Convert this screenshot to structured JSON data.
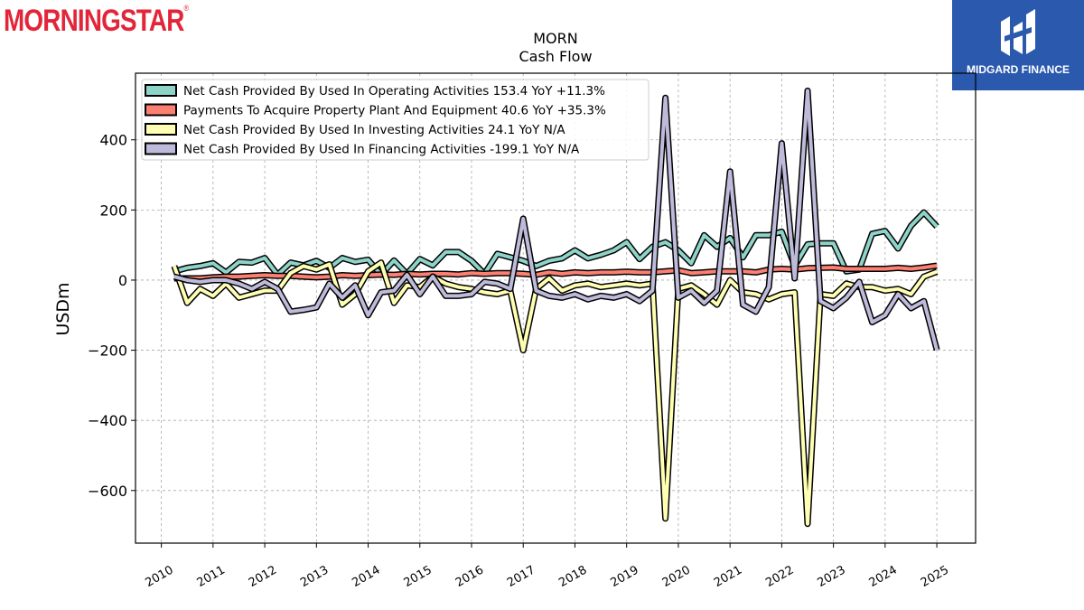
{
  "logos": {
    "left": "MORNINGSTAR",
    "left_mark": "®",
    "right": "MIDGARD FINANCE"
  },
  "colors": {
    "operating": "#8dd3c7",
    "capex": "#fb8072",
    "investing": "#ffffb3",
    "financing": "#bebada"
  },
  "chart_data": {
    "type": "line",
    "title": "MORN",
    "subtitle": "Cash Flow",
    "ylabel": "USDm",
    "xlabel": "",
    "ylim": [
      -750,
      590
    ],
    "xlim": [
      2009.5,
      2025.75
    ],
    "yticks": [
      400,
      200,
      0,
      -200,
      -400,
      -600
    ],
    "ytick_labels": [
      "400",
      "200",
      "0",
      "−200",
      "−400",
      "−600"
    ],
    "xticks": [
      2010,
      2011,
      2012,
      2013,
      2014,
      2015,
      2016,
      2017,
      2018,
      2019,
      2020,
      2021,
      2022,
      2023,
      2024,
      2025
    ],
    "grid": true,
    "legend_position": "top-left",
    "series": [
      {
        "name": "Net Cash Provided By Used In Operating Activities",
        "legend": "Net Cash Provided By Used In Operating Activities  153.4 YoY +11.3%",
        "color": "#8dd3c7",
        "points": [
          [
            2010.25,
            25
          ],
          [
            2010.5,
            35
          ],
          [
            2010.75,
            40
          ],
          [
            2011.0,
            48
          ],
          [
            2011.25,
            22
          ],
          [
            2011.5,
            52
          ],
          [
            2011.75,
            50
          ],
          [
            2012.0,
            63
          ],
          [
            2012.25,
            15
          ],
          [
            2012.5,
            50
          ],
          [
            2012.75,
            42
          ],
          [
            2013.0,
            55
          ],
          [
            2013.25,
            35
          ],
          [
            2013.5,
            63
          ],
          [
            2013.75,
            52
          ],
          [
            2014.0,
            58
          ],
          [
            2014.25,
            15
          ],
          [
            2014.5,
            56
          ],
          [
            2014.75,
            18
          ],
          [
            2015.0,
            60
          ],
          [
            2015.25,
            42
          ],
          [
            2015.5,
            80
          ],
          [
            2015.75,
            80
          ],
          [
            2016.0,
            55
          ],
          [
            2016.25,
            18
          ],
          [
            2016.5,
            75
          ],
          [
            2016.75,
            65
          ],
          [
            2017.0,
            55
          ],
          [
            2017.25,
            40
          ],
          [
            2017.5,
            55
          ],
          [
            2017.75,
            62
          ],
          [
            2018.0,
            85
          ],
          [
            2018.25,
            62
          ],
          [
            2018.5,
            72
          ],
          [
            2018.75,
            85
          ],
          [
            2019.0,
            108
          ],
          [
            2019.25,
            60
          ],
          [
            2019.5,
            95
          ],
          [
            2019.75,
            108
          ],
          [
            2020.0,
            85
          ],
          [
            2020.25,
            48
          ],
          [
            2020.5,
            128
          ],
          [
            2020.75,
            95
          ],
          [
            2021.0,
            120
          ],
          [
            2021.25,
            65
          ],
          [
            2021.5,
            128
          ],
          [
            2021.75,
            128
          ],
          [
            2022.0,
            138
          ],
          [
            2022.25,
            40
          ],
          [
            2022.5,
            102
          ],
          [
            2022.75,
            105
          ],
          [
            2023.0,
            105
          ],
          [
            2023.25,
            25
          ],
          [
            2023.5,
            30
          ],
          [
            2023.75,
            132
          ],
          [
            2024.0,
            140
          ],
          [
            2024.25,
            90
          ],
          [
            2024.5,
            155
          ],
          [
            2024.75,
            193
          ],
          [
            2025.0,
            153
          ]
        ]
      },
      {
        "name": "Payments To Acquire Property Plant And Equipment",
        "legend": "Payments To Acquire Property Plant And Equipment  40.6 YoY +35.3%",
        "color": "#fb8072",
        "points": [
          [
            2010.25,
            5
          ],
          [
            2010.5,
            5
          ],
          [
            2010.75,
            5
          ],
          [
            2011.0,
            8
          ],
          [
            2011.25,
            10
          ],
          [
            2011.5,
            10
          ],
          [
            2011.75,
            12
          ],
          [
            2012.0,
            14
          ],
          [
            2012.25,
            12
          ],
          [
            2012.5,
            12
          ],
          [
            2012.75,
            10
          ],
          [
            2013.0,
            8
          ],
          [
            2013.25,
            10
          ],
          [
            2013.5,
            14
          ],
          [
            2013.75,
            12
          ],
          [
            2014.0,
            14
          ],
          [
            2014.25,
            16
          ],
          [
            2014.5,
            15
          ],
          [
            2014.75,
            18
          ],
          [
            2015.0,
            16
          ],
          [
            2015.25,
            18
          ],
          [
            2015.5,
            18
          ],
          [
            2015.75,
            16
          ],
          [
            2016.0,
            20
          ],
          [
            2016.25,
            18
          ],
          [
            2016.5,
            20
          ],
          [
            2016.75,
            20
          ],
          [
            2017.0,
            18
          ],
          [
            2017.25,
            15
          ],
          [
            2017.5,
            22
          ],
          [
            2017.75,
            18
          ],
          [
            2018.0,
            22
          ],
          [
            2018.25,
            20
          ],
          [
            2018.5,
            22
          ],
          [
            2018.75,
            22
          ],
          [
            2019.0,
            24
          ],
          [
            2019.25,
            22
          ],
          [
            2019.5,
            22
          ],
          [
            2019.75,
            25
          ],
          [
            2020.0,
            28
          ],
          [
            2020.25,
            20
          ],
          [
            2020.5,
            22
          ],
          [
            2020.75,
            25
          ],
          [
            2021.0,
            25
          ],
          [
            2021.25,
            25
          ],
          [
            2021.5,
            22
          ],
          [
            2021.75,
            30
          ],
          [
            2022.0,
            32
          ],
          [
            2022.25,
            30
          ],
          [
            2022.5,
            34
          ],
          [
            2022.75,
            35
          ],
          [
            2023.0,
            36
          ],
          [
            2023.25,
            32
          ],
          [
            2023.5,
            32
          ],
          [
            2023.75,
            32
          ],
          [
            2024.0,
            32
          ],
          [
            2024.25,
            35
          ],
          [
            2024.5,
            32
          ],
          [
            2024.75,
            36
          ],
          [
            2025.0,
            41
          ]
        ]
      },
      {
        "name": "Net Cash Provided By Used In Investing Activities",
        "legend": "Net Cash Provided By Used In Investing Activities  24.1 YoY N/A",
        "color": "#ffffb3",
        "points": [
          [
            2010.25,
            40
          ],
          [
            2010.5,
            -65
          ],
          [
            2010.75,
            -25
          ],
          [
            2011.0,
            -45
          ],
          [
            2011.25,
            -10
          ],
          [
            2011.5,
            -50
          ],
          [
            2011.75,
            -40
          ],
          [
            2012.0,
            -30
          ],
          [
            2012.25,
            -30
          ],
          [
            2012.5,
            20
          ],
          [
            2012.75,
            40
          ],
          [
            2013.0,
            30
          ],
          [
            2013.25,
            45
          ],
          [
            2013.5,
            -70
          ],
          [
            2013.75,
            -40
          ],
          [
            2014.0,
            25
          ],
          [
            2014.25,
            50
          ],
          [
            2014.5,
            -65
          ],
          [
            2014.75,
            -15
          ],
          [
            2015.0,
            -20
          ],
          [
            2015.25,
            10
          ],
          [
            2015.5,
            -10
          ],
          [
            2015.75,
            -20
          ],
          [
            2016.0,
            -25
          ],
          [
            2016.25,
            -35
          ],
          [
            2016.5,
            -40
          ],
          [
            2016.75,
            -30
          ],
          [
            2017.0,
            -200
          ],
          [
            2017.25,
            -25
          ],
          [
            2017.5,
            5
          ],
          [
            2017.75,
            -30
          ],
          [
            2018.0,
            -15
          ],
          [
            2018.25,
            -10
          ],
          [
            2018.5,
            -20
          ],
          [
            2018.75,
            -15
          ],
          [
            2019.0,
            -10
          ],
          [
            2019.25,
            -15
          ],
          [
            2019.5,
            -10
          ],
          [
            2019.75,
            -680
          ],
          [
            2020.0,
            -25
          ],
          [
            2020.25,
            -15
          ],
          [
            2020.5,
            -40
          ],
          [
            2020.75,
            -70
          ],
          [
            2021.0,
            0
          ],
          [
            2021.25,
            -35
          ],
          [
            2021.5,
            -40
          ],
          [
            2021.75,
            -55
          ],
          [
            2022.0,
            -40
          ],
          [
            2022.25,
            -35
          ],
          [
            2022.5,
            -695
          ],
          [
            2022.75,
            -40
          ],
          [
            2023.0,
            -45
          ],
          [
            2023.25,
            -10
          ],
          [
            2023.5,
            -20
          ],
          [
            2023.75,
            -20
          ],
          [
            2024.0,
            -30
          ],
          [
            2024.25,
            -25
          ],
          [
            2024.5,
            -40
          ],
          [
            2024.75,
            10
          ],
          [
            2025.0,
            24
          ]
        ]
      },
      {
        "name": "Net Cash Provided By Used In Financing Activities",
        "legend": "Net Cash Provided By Used In Financing Activities  -199.1 YoY N/A",
        "color": "#bebada",
        "points": [
          [
            2010.25,
            10
          ],
          [
            2010.5,
            0
          ],
          [
            2010.75,
            -5
          ],
          [
            2011.0,
            0
          ],
          [
            2011.25,
            0
          ],
          [
            2011.5,
            -10
          ],
          [
            2011.75,
            -25
          ],
          [
            2012.0,
            -5
          ],
          [
            2012.25,
            -25
          ],
          [
            2012.5,
            -90
          ],
          [
            2012.75,
            -85
          ],
          [
            2013.0,
            -78
          ],
          [
            2013.25,
            -10
          ],
          [
            2013.5,
            -50
          ],
          [
            2013.75,
            -15
          ],
          [
            2014.0,
            -100
          ],
          [
            2014.25,
            -35
          ],
          [
            2014.5,
            -30
          ],
          [
            2014.75,
            15
          ],
          [
            2015.0,
            -40
          ],
          [
            2015.25,
            10
          ],
          [
            2015.5,
            -45
          ],
          [
            2015.75,
            -45
          ],
          [
            2016.0,
            -40
          ],
          [
            2016.25,
            -5
          ],
          [
            2016.5,
            -10
          ],
          [
            2016.75,
            -25
          ],
          [
            2017.0,
            175
          ],
          [
            2017.25,
            -30
          ],
          [
            2017.5,
            -45
          ],
          [
            2017.75,
            -50
          ],
          [
            2018.0,
            -40
          ],
          [
            2018.25,
            -55
          ],
          [
            2018.5,
            -45
          ],
          [
            2018.75,
            -50
          ],
          [
            2019.0,
            -40
          ],
          [
            2019.25,
            -60
          ],
          [
            2019.5,
            -30
          ],
          [
            2019.75,
            520
          ],
          [
            2020.0,
            -50
          ],
          [
            2020.25,
            -30
          ],
          [
            2020.5,
            -65
          ],
          [
            2020.75,
            -30
          ],
          [
            2021.0,
            310
          ],
          [
            2021.25,
            -70
          ],
          [
            2021.5,
            -90
          ],
          [
            2021.75,
            -20
          ],
          [
            2022.0,
            390
          ],
          [
            2022.25,
            5
          ],
          [
            2022.5,
            540
          ],
          [
            2022.75,
            -60
          ],
          [
            2023.0,
            -80
          ],
          [
            2023.25,
            -50
          ],
          [
            2023.5,
            -5
          ],
          [
            2023.75,
            -120
          ],
          [
            2024.0,
            -100
          ],
          [
            2024.25,
            -40
          ],
          [
            2024.5,
            -80
          ],
          [
            2024.75,
            -60
          ],
          [
            2025.0,
            -199
          ]
        ]
      }
    ]
  }
}
